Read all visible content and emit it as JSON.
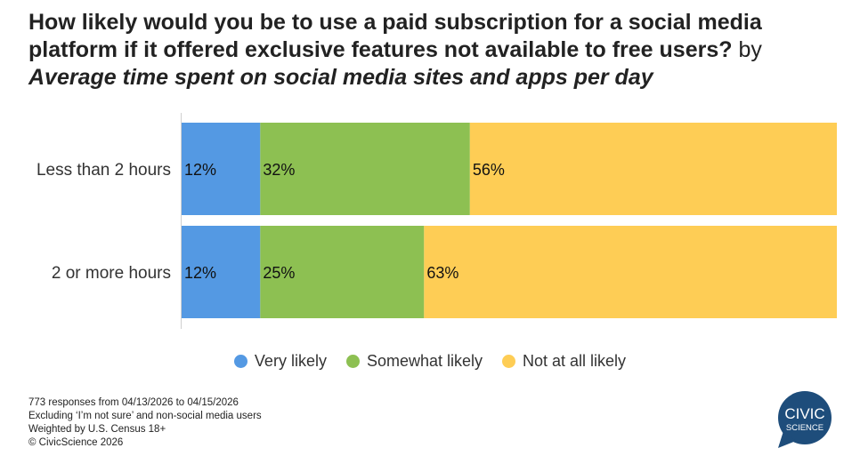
{
  "chart_data": {
    "type": "bar",
    "stacked": true,
    "orientation": "horizontal",
    "title": "How likely would you be to use a paid subscription for a social media platform if it offered exclusive features not available to free users?",
    "title_by": "by",
    "subtitle": "Average time spent on social media sites and apps per day",
    "categories": [
      "Less than 2 hours",
      "2 or more hours"
    ],
    "series": [
      {
        "name": "Very likely",
        "color": "#5499e3",
        "values": [
          12,
          12
        ],
        "labels": [
          "12%",
          "12%"
        ]
      },
      {
        "name": "Somewhat likely",
        "color": "#8dc052",
        "values": [
          32,
          25
        ],
        "labels": [
          "32%",
          "25%"
        ]
      },
      {
        "name": "Not at all likely",
        "color": "#fecd55",
        "values": [
          56,
          63
        ],
        "labels": [
          "56%",
          "63%"
        ]
      }
    ],
    "xlim": [
      0,
      100
    ],
    "legend": "bottom-center",
    "grid": false
  },
  "notes": [
    "773 responses from 04/13/2026 to 04/15/2026",
    "Excluding ‘I’m not sure’ and non-social media users",
    "Weighted by U.S. Census 18+",
    "© CivicScience 2026"
  ],
  "logo": {
    "line1": "CIVIC",
    "line2": "SCIENCE",
    "color": "#1e4d7b"
  }
}
